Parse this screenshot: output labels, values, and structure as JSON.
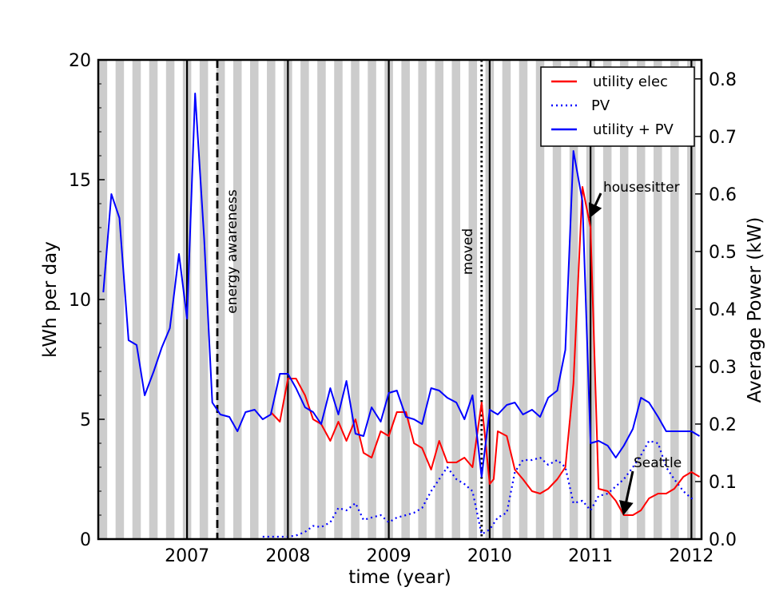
{
  "chart_data": {
    "type": "line",
    "xlabel": "time (year)",
    "ylabel": "kWh per day",
    "y2label": "Average Power (kW)",
    "xlim": [
      2006.12,
      2012.1
    ],
    "ylim": [
      0,
      20
    ],
    "y2lim": [
      0,
      0.833
    ],
    "x_ticks": [
      2007,
      2008,
      2009,
      2010,
      2011,
      2012
    ],
    "y_ticks": [
      0,
      5,
      10,
      15,
      20
    ],
    "y2_ticks": [
      0.0,
      0.1,
      0.2,
      0.3,
      0.4,
      0.5,
      0.6,
      0.7,
      0.8
    ],
    "grid": "none",
    "background": "alternating grey/white vertical month bands",
    "legend_position": "top-right",
    "colors": {
      "utility_elec": "#ff0000",
      "pv": "#0000ff",
      "utility_plus_pv": "#0000ff",
      "band": "#cccccc"
    },
    "year_lines": [
      2007,
      2008,
      2009,
      2010,
      2011,
      2012
    ],
    "series": [
      {
        "name": "utility elec",
        "style": "solid",
        "color": "#ff0000",
        "points": [
          [
            2007.83,
            5.3
          ],
          [
            2007.92,
            4.9
          ],
          [
            2008.0,
            6.7
          ],
          [
            2008.04,
            6.7
          ],
          [
            2008.08,
            6.7
          ],
          [
            2008.17,
            6.0
          ],
          [
            2008.25,
            5.0
          ],
          [
            2008.33,
            4.8
          ],
          [
            2008.42,
            4.1
          ],
          [
            2008.5,
            4.9
          ],
          [
            2008.58,
            4.1
          ],
          [
            2008.67,
            5.0
          ],
          [
            2008.75,
            3.6
          ],
          [
            2008.83,
            3.4
          ],
          [
            2008.92,
            4.5
          ],
          [
            2009.0,
            4.3
          ],
          [
            2009.08,
            5.3
          ],
          [
            2009.17,
            5.3
          ],
          [
            2009.25,
            4.0
          ],
          [
            2009.33,
            3.8
          ],
          [
            2009.42,
            2.9
          ],
          [
            2009.5,
            4.1
          ],
          [
            2009.58,
            3.2
          ],
          [
            2009.67,
            3.2
          ],
          [
            2009.75,
            3.4
          ],
          [
            2009.83,
            3.0
          ],
          [
            2009.92,
            5.7
          ],
          [
            2010.0,
            2.3
          ],
          [
            2010.04,
            2.5
          ],
          [
            2010.08,
            4.5
          ],
          [
            2010.17,
            4.3
          ],
          [
            2010.25,
            2.9
          ],
          [
            2010.33,
            2.5
          ],
          [
            2010.42,
            2.0
          ],
          [
            2010.5,
            1.9
          ],
          [
            2010.58,
            2.1
          ],
          [
            2010.67,
            2.5
          ],
          [
            2010.75,
            3.0
          ],
          [
            2010.83,
            6.5
          ],
          [
            2010.92,
            14.7
          ],
          [
            2011.0,
            13.0
          ],
          [
            2011.08,
            2.1
          ],
          [
            2011.17,
            2.0
          ],
          [
            2011.25,
            1.6
          ],
          [
            2011.33,
            1.0
          ],
          [
            2011.42,
            1.0
          ],
          [
            2011.5,
            1.2
          ],
          [
            2011.58,
            1.7
          ],
          [
            2011.67,
            1.9
          ],
          [
            2011.75,
            1.9
          ],
          [
            2011.83,
            2.1
          ],
          [
            2011.92,
            2.6
          ],
          [
            2012.0,
            2.8
          ],
          [
            2012.08,
            2.6
          ]
        ]
      },
      {
        "name": "PV",
        "style": "dotted",
        "color": "#0000ff",
        "points": [
          [
            2007.75,
            0.1
          ],
          [
            2007.83,
            0.1
          ],
          [
            2007.92,
            0.1
          ],
          [
            2008.0,
            0.1
          ],
          [
            2008.08,
            0.15
          ],
          [
            2008.17,
            0.3
          ],
          [
            2008.25,
            0.55
          ],
          [
            2008.33,
            0.5
          ],
          [
            2008.42,
            0.7
          ],
          [
            2008.5,
            1.3
          ],
          [
            2008.58,
            1.2
          ],
          [
            2008.67,
            1.5
          ],
          [
            2008.75,
            0.8
          ],
          [
            2008.83,
            0.9
          ],
          [
            2008.92,
            1.0
          ],
          [
            2009.0,
            0.7
          ],
          [
            2009.08,
            0.9
          ],
          [
            2009.17,
            1.0
          ],
          [
            2009.25,
            1.1
          ],
          [
            2009.33,
            1.3
          ],
          [
            2009.42,
            2.0
          ],
          [
            2009.5,
            2.5
          ],
          [
            2009.58,
            3.0
          ],
          [
            2009.67,
            2.5
          ],
          [
            2009.75,
            2.3
          ],
          [
            2009.83,
            2.0
          ],
          [
            2009.92,
            0.2
          ],
          [
            2010.0,
            0.4
          ],
          [
            2010.08,
            0.9
          ],
          [
            2010.17,
            1.1
          ],
          [
            2010.25,
            2.8
          ],
          [
            2010.33,
            3.3
          ],
          [
            2010.42,
            3.3
          ],
          [
            2010.5,
            3.4
          ],
          [
            2010.58,
            3.1
          ],
          [
            2010.67,
            3.3
          ],
          [
            2010.75,
            3.0
          ],
          [
            2010.83,
            1.5
          ],
          [
            2010.92,
            1.6
          ],
          [
            2011.0,
            1.2
          ],
          [
            2011.08,
            1.8
          ],
          [
            2011.17,
            1.9
          ],
          [
            2011.25,
            2.2
          ],
          [
            2011.33,
            2.5
          ],
          [
            2011.42,
            3.0
          ],
          [
            2011.5,
            3.5
          ],
          [
            2011.58,
            4.1
          ],
          [
            2011.67,
            4.0
          ],
          [
            2011.75,
            3.0
          ],
          [
            2011.83,
            2.5
          ],
          [
            2011.92,
            2.0
          ],
          [
            2012.0,
            1.7
          ],
          [
            2012.04,
            1.7
          ]
        ]
      },
      {
        "name": "utility + PV",
        "style": "solid",
        "color": "#0000ff",
        "points": [
          [
            2006.17,
            10.3
          ],
          [
            2006.25,
            14.4
          ],
          [
            2006.33,
            13.4
          ],
          [
            2006.42,
            8.3
          ],
          [
            2006.5,
            8.1
          ],
          [
            2006.58,
            6.0
          ],
          [
            2006.67,
            7.0
          ],
          [
            2006.75,
            8.0
          ],
          [
            2006.83,
            8.8
          ],
          [
            2006.92,
            11.9
          ],
          [
            2007.0,
            9.2
          ],
          [
            2007.08,
            18.6
          ],
          [
            2007.17,
            12.5
          ],
          [
            2007.25,
            5.7
          ],
          [
            2007.33,
            5.2
          ],
          [
            2007.42,
            5.1
          ],
          [
            2007.5,
            4.5
          ],
          [
            2007.58,
            5.3
          ],
          [
            2007.67,
            5.4
          ],
          [
            2007.75,
            5.0
          ],
          [
            2007.83,
            5.2
          ],
          [
            2007.92,
            6.9
          ],
          [
            2008.0,
            6.9
          ],
          [
            2008.08,
            6.3
          ],
          [
            2008.17,
            5.5
          ],
          [
            2008.25,
            5.3
          ],
          [
            2008.33,
            4.8
          ],
          [
            2008.42,
            6.3
          ],
          [
            2008.5,
            5.2
          ],
          [
            2008.58,
            6.6
          ],
          [
            2008.67,
            4.4
          ],
          [
            2008.75,
            4.3
          ],
          [
            2008.83,
            5.5
          ],
          [
            2008.92,
            4.9
          ],
          [
            2009.0,
            6.1
          ],
          [
            2009.08,
            6.2
          ],
          [
            2009.17,
            5.1
          ],
          [
            2009.25,
            5.0
          ],
          [
            2009.33,
            4.8
          ],
          [
            2009.42,
            6.3
          ],
          [
            2009.5,
            6.2
          ],
          [
            2009.58,
            5.9
          ],
          [
            2009.67,
            5.7
          ],
          [
            2009.75,
            5.0
          ],
          [
            2009.83,
            6.0
          ],
          [
            2009.92,
            2.6
          ],
          [
            2010.0,
            5.4
          ],
          [
            2010.08,
            5.2
          ],
          [
            2010.17,
            5.6
          ],
          [
            2010.25,
            5.7
          ],
          [
            2010.33,
            5.2
          ],
          [
            2010.42,
            5.4
          ],
          [
            2010.5,
            5.1
          ],
          [
            2010.58,
            5.9
          ],
          [
            2010.67,
            6.2
          ],
          [
            2010.75,
            7.9
          ],
          [
            2010.83,
            16.2
          ],
          [
            2010.92,
            14.1
          ],
          [
            2011.0,
            4.0
          ],
          [
            2011.08,
            4.1
          ],
          [
            2011.17,
            3.9
          ],
          [
            2011.25,
            3.4
          ],
          [
            2011.33,
            3.9
          ],
          [
            2011.42,
            4.6
          ],
          [
            2011.5,
            5.9
          ],
          [
            2011.58,
            5.7
          ],
          [
            2011.67,
            5.1
          ],
          [
            2011.75,
            4.5
          ],
          [
            2011.83,
            4.5
          ],
          [
            2011.92,
            4.5
          ],
          [
            2012.0,
            4.5
          ],
          [
            2012.08,
            4.3
          ]
        ]
      }
    ],
    "event_lines": [
      {
        "x": 2007.3,
        "style": "dashed",
        "label": "energy awareness"
      },
      {
        "x": 2009.92,
        "style": "dotted",
        "label": "moved"
      }
    ],
    "annotations": [
      {
        "text": "housesitter",
        "arrow_to": [
          2011.0,
          13.5
        ]
      },
      {
        "text": "Seattle",
        "arrow_to": [
          2011.33,
          1.1
        ]
      }
    ]
  }
}
